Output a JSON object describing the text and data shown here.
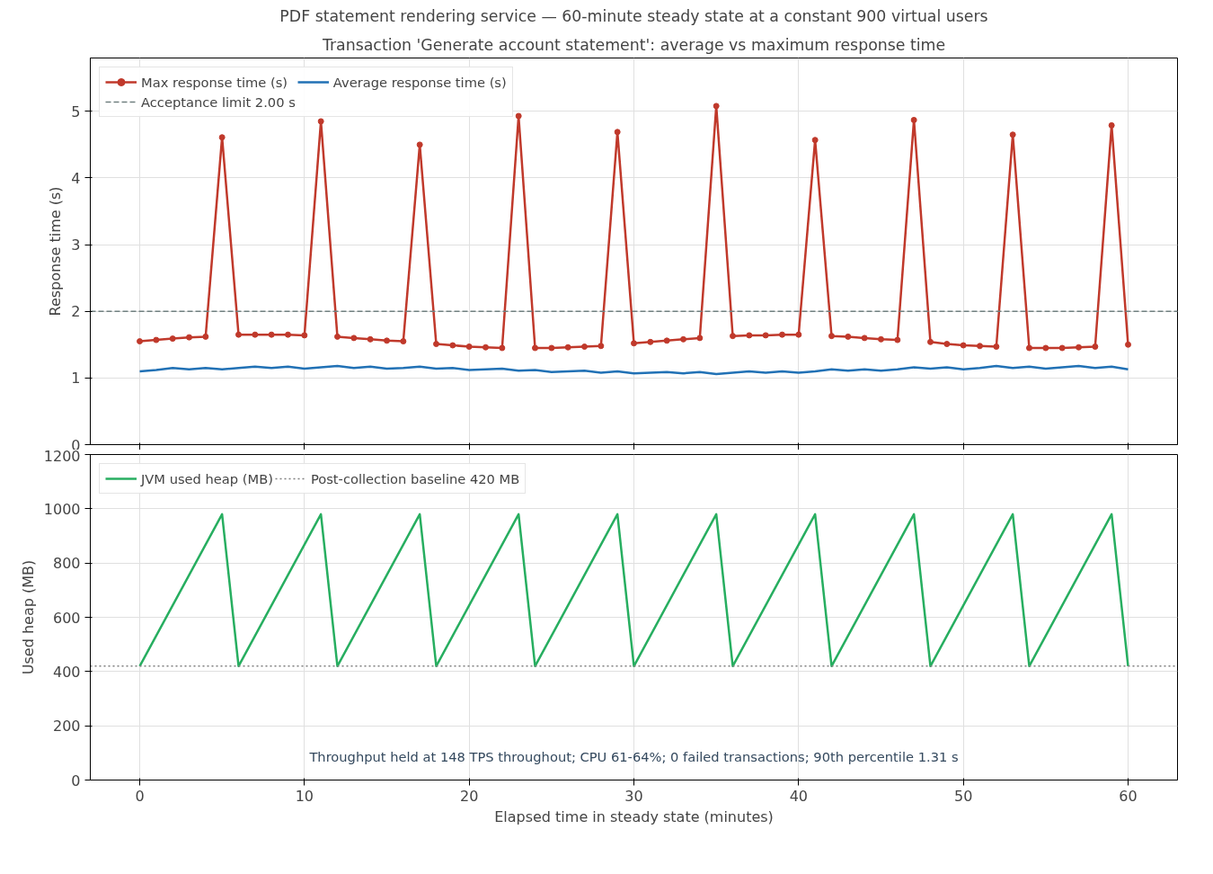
{
  "chart_data": [
    {
      "type": "line",
      "title": "PDF statement rendering service — 60-minute steady state at a constant 900 virtual users",
      "subtitle": "Transaction 'Generate account statement': average vs maximum response time",
      "ylabel": "Response time (s)",
      "x": [
        0,
        1,
        2,
        3,
        4,
        5,
        6,
        7,
        8,
        9,
        10,
        11,
        12,
        13,
        14,
        15,
        16,
        17,
        18,
        19,
        20,
        21,
        22,
        23,
        24,
        25,
        26,
        27,
        28,
        29,
        30,
        31,
        32,
        33,
        34,
        35,
        36,
        37,
        38,
        39,
        40,
        41,
        42,
        43,
        44,
        45,
        46,
        47,
        48,
        49,
        50,
        51,
        52,
        53,
        54,
        55,
        56,
        57,
        58,
        59,
        60
      ],
      "series": [
        {
          "name": "Max response time (s)",
          "color": "#c0392b",
          "marker": "circle",
          "line_style": "solid",
          "values": [
            1.55,
            1.57,
            1.59,
            1.61,
            1.62,
            4.61,
            1.65,
            1.65,
            1.65,
            1.65,
            1.64,
            4.85,
            1.62,
            1.6,
            1.58,
            1.56,
            1.55,
            4.5,
            1.51,
            1.49,
            1.47,
            1.46,
            1.45,
            4.93,
            1.45,
            1.45,
            1.46,
            1.47,
            1.48,
            4.69,
            1.52,
            1.54,
            1.56,
            1.58,
            1.6,
            5.08,
            1.63,
            1.64,
            1.64,
            1.65,
            1.65,
            4.57,
            1.63,
            1.62,
            1.6,
            1.58,
            1.57,
            4.87,
            1.54,
            1.51,
            1.49,
            1.48,
            1.47,
            4.65,
            1.45,
            1.45,
            1.45,
            1.46,
            1.47,
            4.79,
            1.5
          ]
        },
        {
          "name": "Average response time (s)",
          "color": "#2171b5",
          "marker": "none",
          "line_style": "solid",
          "values": [
            1.1,
            1.12,
            1.15,
            1.13,
            1.15,
            1.13,
            1.15,
            1.17,
            1.15,
            1.17,
            1.14,
            1.16,
            1.18,
            1.15,
            1.17,
            1.14,
            1.15,
            1.17,
            1.14,
            1.15,
            1.12,
            1.13,
            1.14,
            1.11,
            1.12,
            1.09,
            1.1,
            1.11,
            1.08,
            1.1,
            1.07,
            1.08,
            1.09,
            1.07,
            1.09,
            1.06,
            1.08,
            1.1,
            1.08,
            1.1,
            1.08,
            1.1,
            1.13,
            1.11,
            1.13,
            1.11,
            1.13,
            1.16,
            1.14,
            1.16,
            1.13,
            1.15,
            1.18,
            1.15,
            1.17,
            1.14,
            1.16,
            1.18,
            1.15,
            1.17,
            1.13
          ]
        }
      ],
      "ref_lines": [
        {
          "axis": "y",
          "value": 2,
          "label": "Acceptance limit 2.00 s",
          "color": "#708080",
          "line_style": "dashed"
        }
      ],
      "xlim": [
        -3,
        63
      ],
      "xticks": [
        0,
        10,
        20,
        30,
        40,
        50,
        60
      ],
      "ylim": [
        0,
        5.8
      ],
      "yticks": [
        0,
        1,
        2,
        3,
        4,
        5
      ],
      "tick_labels": "y",
      "grid": true,
      "legend": "top left"
    },
    {
      "type": "line",
      "xlabel": "Elapsed time in steady state (minutes)",
      "ylabel": "Used heap (MB)",
      "x": [
        0,
        5,
        6,
        11,
        12,
        17,
        18,
        23,
        24,
        29,
        30,
        35,
        36,
        41,
        42,
        47,
        48,
        53,
        54,
        59,
        60
      ],
      "series": [
        {
          "name": "JVM used heap (MB)",
          "color": "#27ae60",
          "line_style": "solid",
          "values": [
            420,
            980,
            420,
            980,
            420,
            980,
            420,
            980,
            420,
            980,
            420,
            980,
            420,
            980,
            420,
            980,
            420,
            980,
            420,
            980,
            420
          ]
        }
      ],
      "ref_lines": [
        {
          "axis": "y",
          "value": 420,
          "label": "Post-collection baseline 420 MB",
          "color": "#808080",
          "line_style": "dotted"
        }
      ],
      "annotations": [
        "Throughput held at 148 TPS throughout; CPU 61-64%; 0 failed transactions; 90th percentile 1.31 s"
      ],
      "xlim": [
        -3,
        63
      ],
      "xticks": [
        0,
        10,
        20,
        30,
        40,
        50,
        60
      ],
      "ylim": [
        0,
        1200
      ],
      "yticks": [
        0,
        200,
        400,
        600,
        800,
        1000,
        1200
      ],
      "grid": true,
      "legend": "top left"
    }
  ]
}
